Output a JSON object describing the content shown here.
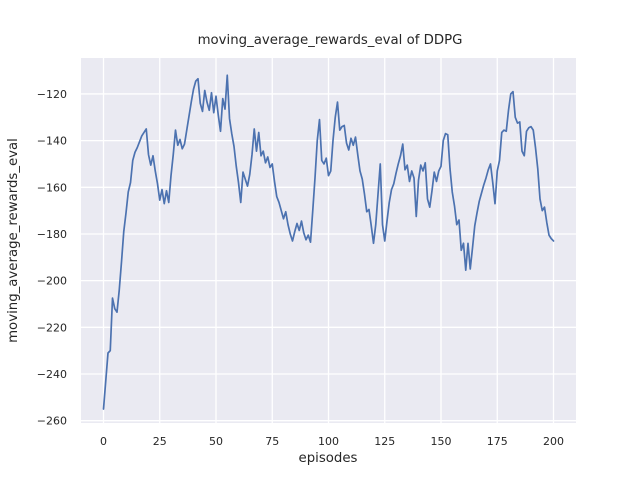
{
  "title": "moving_average_rewards_eval of DDPG",
  "xlabel": "episodes",
  "ylabel": "moving_average_rewards_eval",
  "colors": {
    "line": "#4C72B0",
    "plot_background": "#EAEAF2",
    "grid": "#FFFFFF",
    "text": "#262626",
    "figure_background": "#FFFFFF"
  },
  "chart_data": {
    "type": "line",
    "title": "moving_average_rewards_eval of DDPG",
    "xlabel": "episodes",
    "ylabel": "moving_average_rewards_eval",
    "x_ticks": [
      0,
      25,
      50,
      75,
      100,
      125,
      150,
      175,
      200
    ],
    "y_ticks": [
      -120,
      -140,
      -160,
      -180,
      -200,
      -220,
      -240,
      -260
    ],
    "xlim": [
      -10,
      210
    ],
    "ylim": [
      -261,
      -104.6
    ],
    "grid": true,
    "legend": null,
    "series": [
      {
        "name": "moving_average_rewards_eval",
        "x_start": 0,
        "x_step": 1,
        "y": [
          -255,
          -243,
          -231,
          -230,
          -207.5,
          -212,
          -213.5,
          -204,
          -192,
          -179,
          -171,
          -162,
          -158,
          -148.5,
          -145,
          -143,
          -140.5,
          -138,
          -136.5,
          -135,
          -146,
          -150.5,
          -146.5,
          -153,
          -158.5,
          -165.5,
          -161,
          -167,
          -161.5,
          -166.5,
          -155,
          -146,
          -135.5,
          -142,
          -139.5,
          -143.5,
          -141.5,
          -135.5,
          -129.5,
          -123.5,
          -118,
          -114.5,
          -113.5,
          -124,
          -127.5,
          -118.5,
          -123.5,
          -127,
          -119.5,
          -128,
          -121,
          -129,
          -136,
          -122,
          -126.5,
          -112,
          -130.5,
          -137,
          -142.5,
          -151,
          -158,
          -166.5,
          -153.5,
          -156.5,
          -159.5,
          -154.5,
          -146,
          -135,
          -144.5,
          -136.5,
          -146.5,
          -144.5,
          -149.5,
          -147,
          -151.5,
          -150,
          -157.5,
          -164,
          -166.5,
          -170,
          -173.5,
          -170.5,
          -176,
          -180,
          -183,
          -179,
          -175.5,
          -178.5,
          -174.5,
          -179.5,
          -182.5,
          -180.5,
          -183.5,
          -170,
          -156,
          -140,
          -131,
          -148.5,
          -150,
          -147.5,
          -155,
          -153,
          -140,
          -130,
          -123.5,
          -135.5,
          -134,
          -133.5,
          -141,
          -144,
          -139,
          -142,
          -138.5,
          -146,
          -153,
          -156.5,
          -163,
          -170.5,
          -169.5,
          -176.5,
          -184,
          -176,
          -163,
          -150,
          -176,
          -183,
          -174.5,
          -166.5,
          -161,
          -158.5,
          -154,
          -150,
          -146.5,
          -141.5,
          -152.5,
          -150.5,
          -157.5,
          -153,
          -156,
          -172.5,
          -157,
          -150.5,
          -153,
          -149.5,
          -165,
          -168.5,
          -161.5,
          -153.5,
          -157.5,
          -153,
          -151,
          -140,
          -137,
          -137.5,
          -152,
          -162,
          -168,
          -176,
          -174,
          -187,
          -184,
          -195.5,
          -184,
          -195,
          -186,
          -176.5,
          -171,
          -166,
          -162.5,
          -159,
          -156,
          -152.5,
          -150,
          -158,
          -167,
          -153,
          -148.5,
          -136.5,
          -135.5,
          -136,
          -127,
          -120,
          -119,
          -130,
          -132.5,
          -132,
          -144.5,
          -146.5,
          -136,
          -134.5,
          -134,
          -135.5,
          -143,
          -152,
          -165,
          -170,
          -168.5,
          -175,
          -180.5,
          -182,
          -183
        ]
      }
    ]
  }
}
